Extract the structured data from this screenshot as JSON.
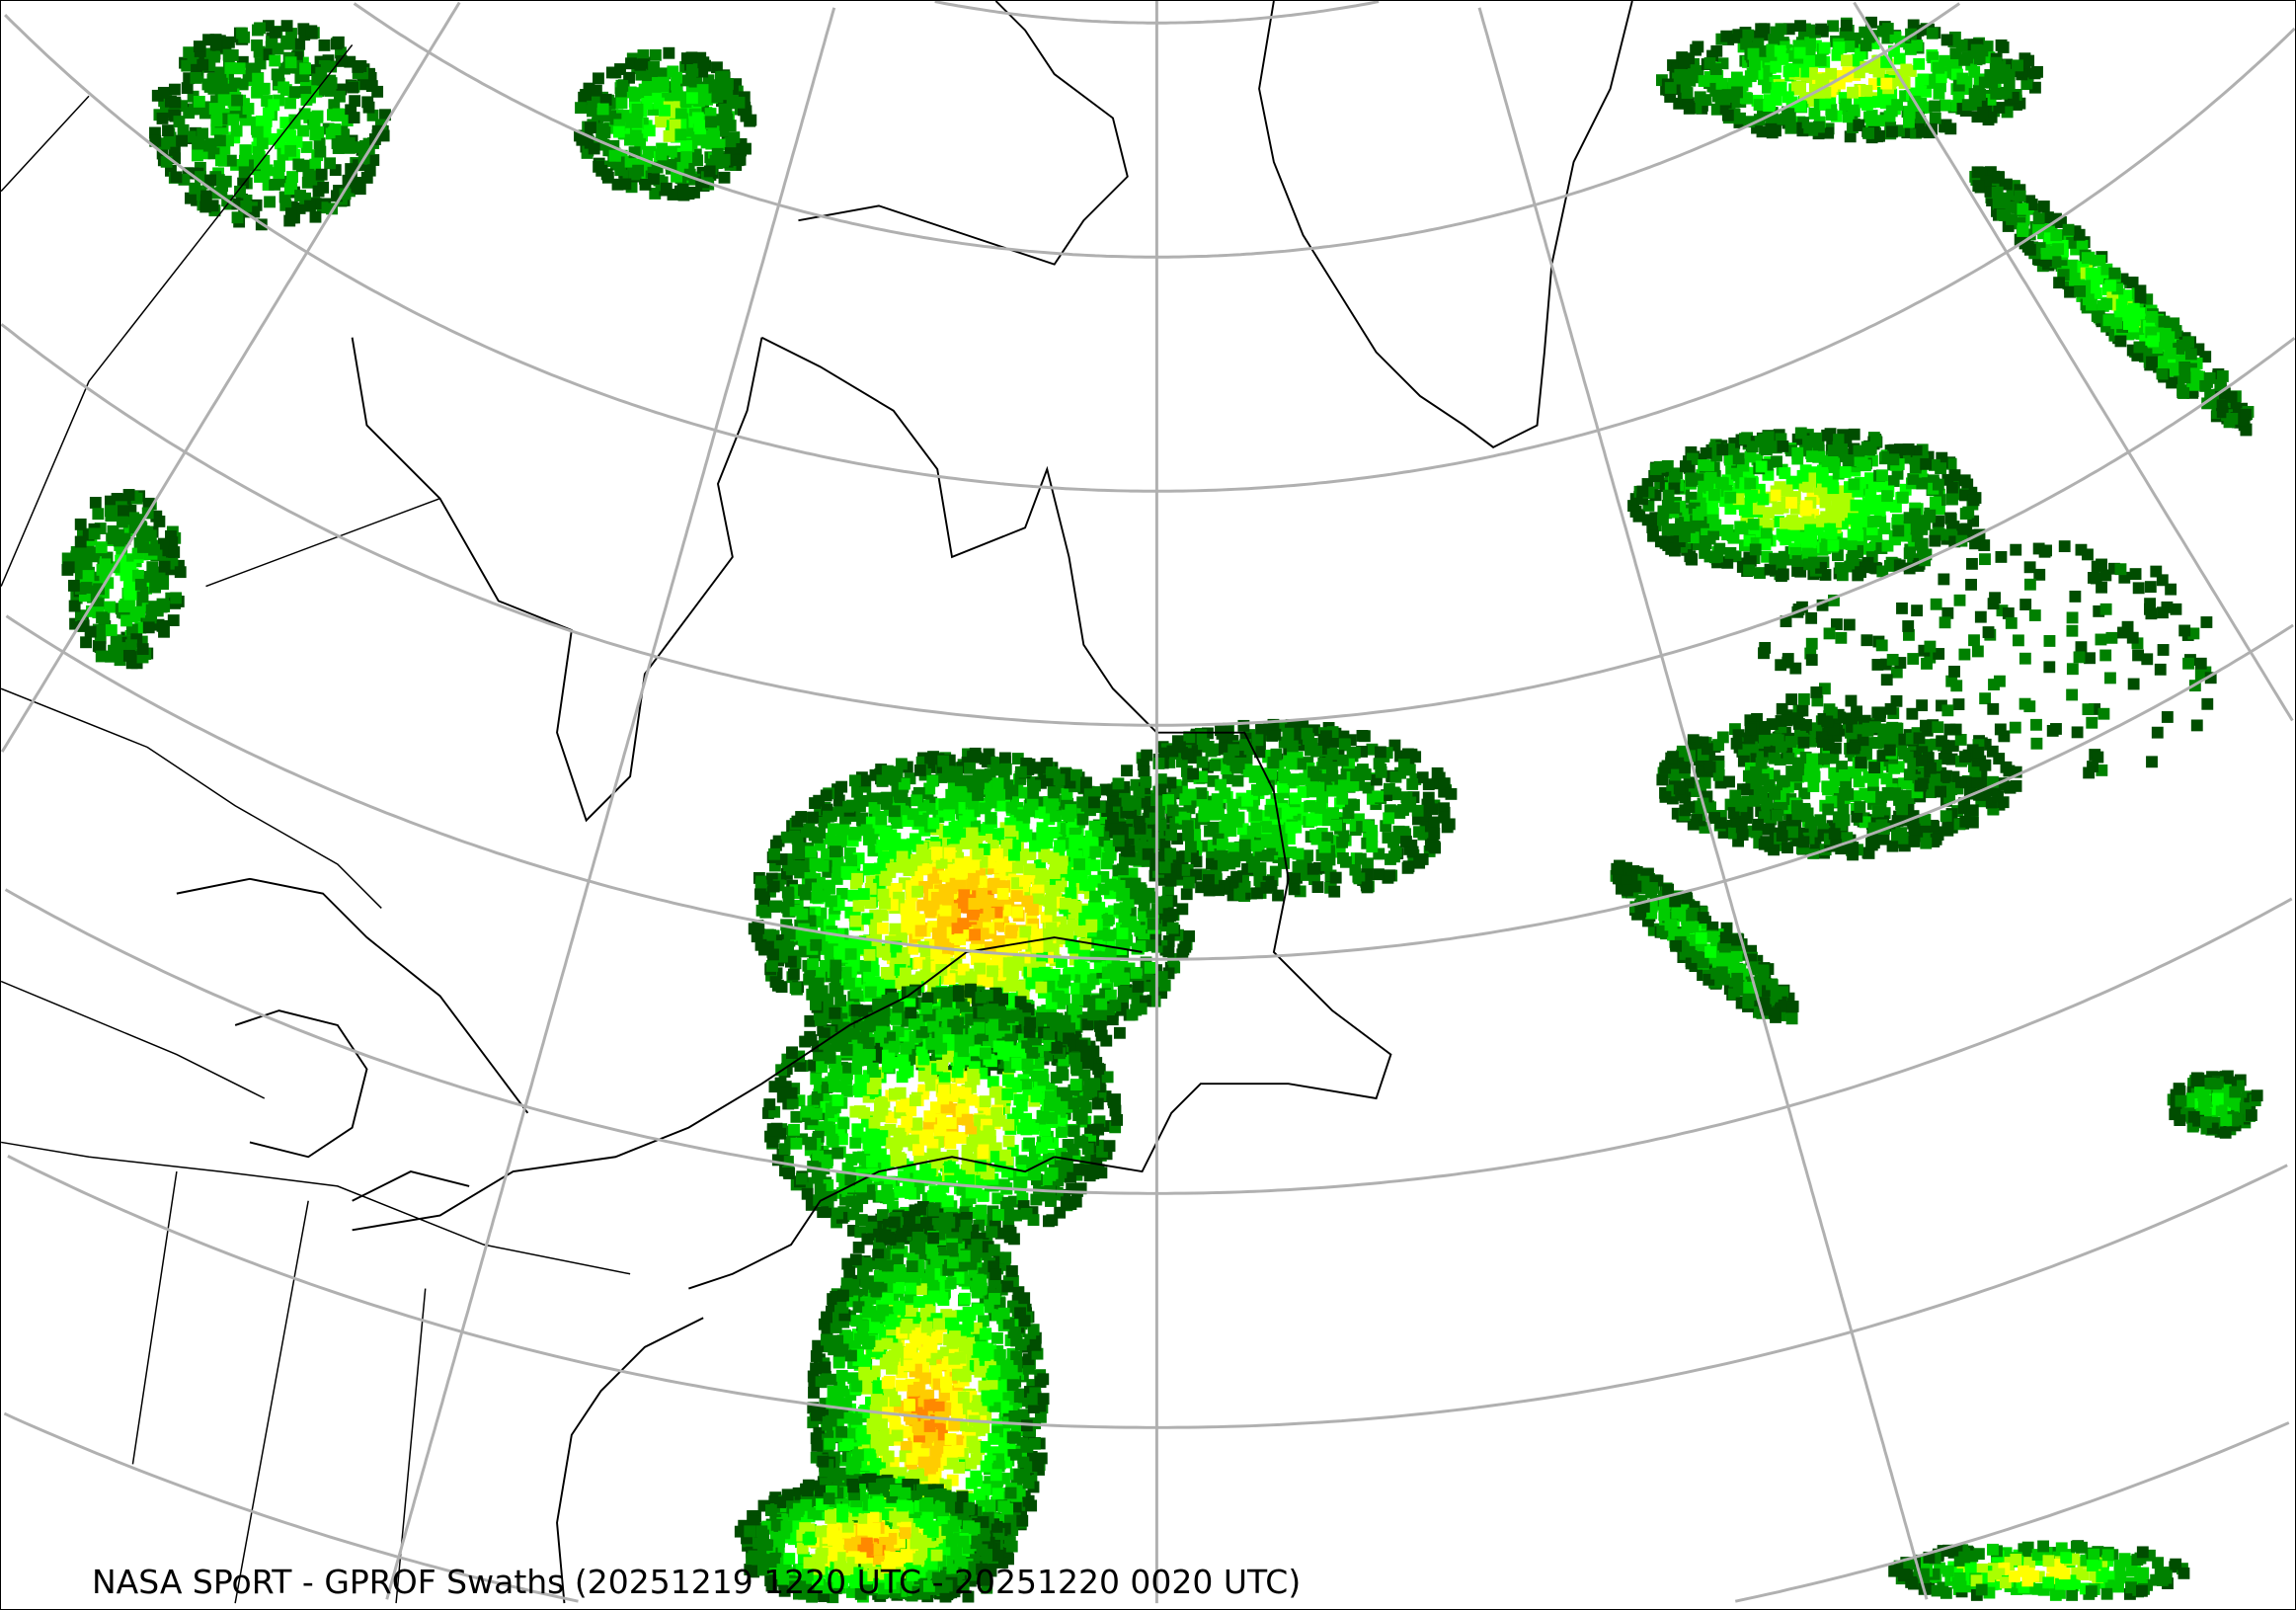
{
  "caption": "NASA SPoRT - GPROF Swaths (20251219 1220 UTC - 20251220 0020 UTC)",
  "map": {
    "projection": "lambert-conformal",
    "graticule_color": "#b0b0b0",
    "coastline_color": "#000000",
    "precip_colors": [
      "#004d00",
      "#008000",
      "#00cc00",
      "#00ff00",
      "#aaff00",
      "#ffff00",
      "#ffcc00",
      "#ff8800"
    ]
  }
}
